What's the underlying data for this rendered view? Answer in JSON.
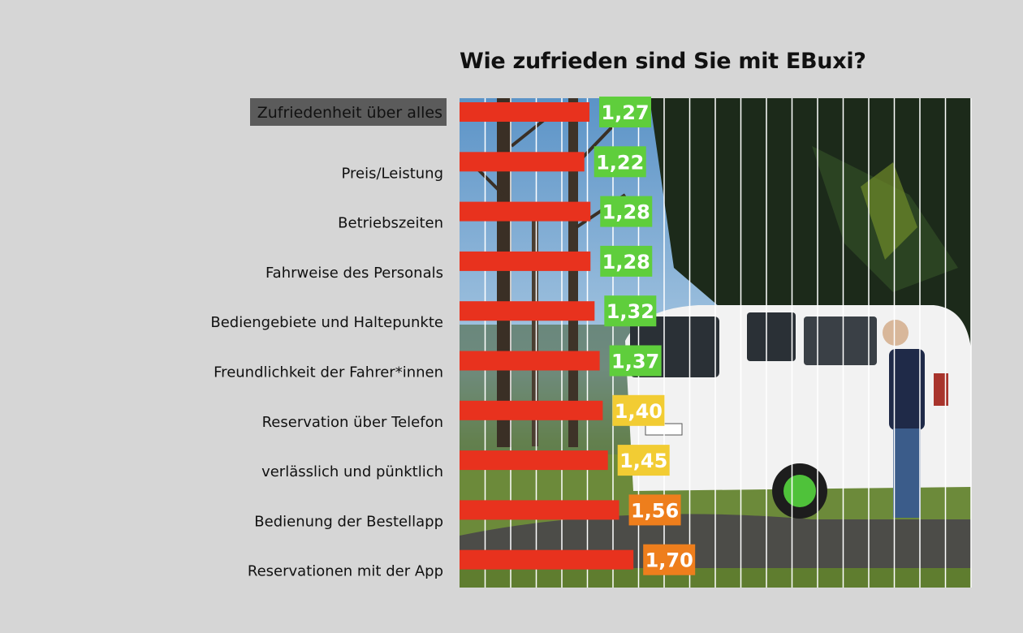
{
  "chart_data": {
    "type": "bar",
    "orientation": "horizontal",
    "title": "Wie zufrieden sind Sie mit EBuxi?",
    "categories": [
      "Zufriedenheit über alles",
      "Preis/Leistung",
      "Betriebszeiten",
      "Fahrweise des Personals",
      "Bediengebiete und Haltepunkte",
      "Freundlichkeit der Fahrer*innen",
      "Reservation über Telefon",
      "verlässlich und pünktlich",
      "Bedienung der Bestellapp",
      "Reservationen mit der App"
    ],
    "values": [
      1.27,
      1.22,
      1.28,
      1.28,
      1.32,
      1.37,
      1.4,
      1.45,
      1.56,
      1.7
    ],
    "value_labels": [
      "1,27",
      "1,22",
      "1,28",
      "1,28",
      "1,32",
      "1,37",
      "1,40",
      "1,45",
      "1,56",
      "1,70"
    ],
    "label_colors": [
      "#5fce3c",
      "#5fce3c",
      "#5fce3c",
      "#5fce3c",
      "#5fce3c",
      "#5fce3c",
      "#f2cc33",
      "#f2cc33",
      "#ee7e1c",
      "#ee7e1c"
    ],
    "bar_color": "#e8321e",
    "highlight_category": 0,
    "highlight_color": "#5b5b5b",
    "xlim": [
      0,
      5
    ],
    "grid": true,
    "background_image": "photo of white EBuxi electric van with woman standing beside it, trees behind"
  }
}
